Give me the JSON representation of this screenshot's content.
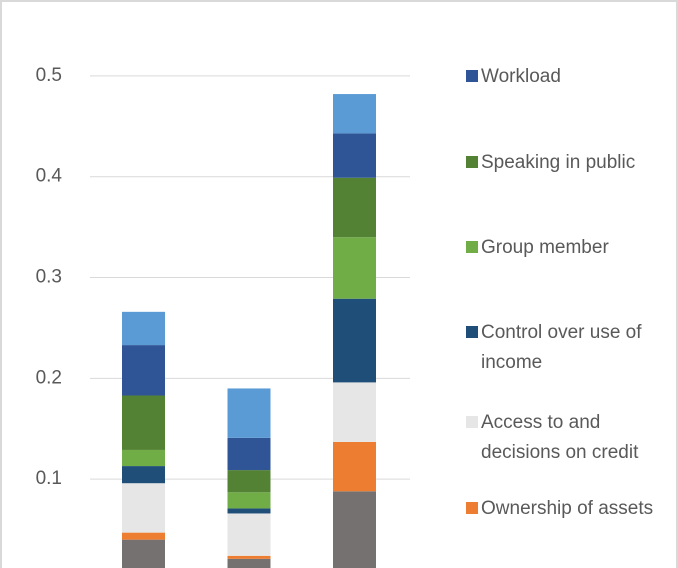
{
  "chart_data": {
    "type": "bar",
    "stacked": true,
    "categories": [
      null,
      null,
      null
    ],
    "series": [
      {
        "color": "#767171",
        "values": [
          0.04,
          0.021,
          0.088
        ]
      },
      {
        "name": "Ownership of assets",
        "color": "#ed7d31",
        "values": [
          0.007,
          0.003,
          0.049
        ]
      },
      {
        "name": "Access to and decisions on credit",
        "color": "#e7e6e6",
        "values": [
          0.049,
          0.042,
          0.059
        ]
      },
      {
        "name": "Control over use of income",
        "color": "#1f4e79",
        "values": [
          0.017,
          0.005,
          0.083
        ]
      },
      {
        "name": "Group member",
        "color": "#70ad47",
        "values": [
          0.016,
          0.016,
          0.061
        ]
      },
      {
        "name": "Speaking in public",
        "color": "#548235",
        "values": [
          0.054,
          0.022,
          0.059
        ]
      },
      {
        "name": "Workload",
        "color": "#2f5597",
        "values": [
          0.05,
          0.032,
          0.044
        ]
      },
      {
        "color": "#5b9bd5",
        "values": [
          0.033,
          0.049,
          0.039
        ]
      }
    ],
    "ylim": [
      0,
      0.55
    ],
    "yticks": [
      0.1,
      0.2,
      0.3,
      0.4,
      0.5
    ],
    "grid": true,
    "legend": "right"
  }
}
